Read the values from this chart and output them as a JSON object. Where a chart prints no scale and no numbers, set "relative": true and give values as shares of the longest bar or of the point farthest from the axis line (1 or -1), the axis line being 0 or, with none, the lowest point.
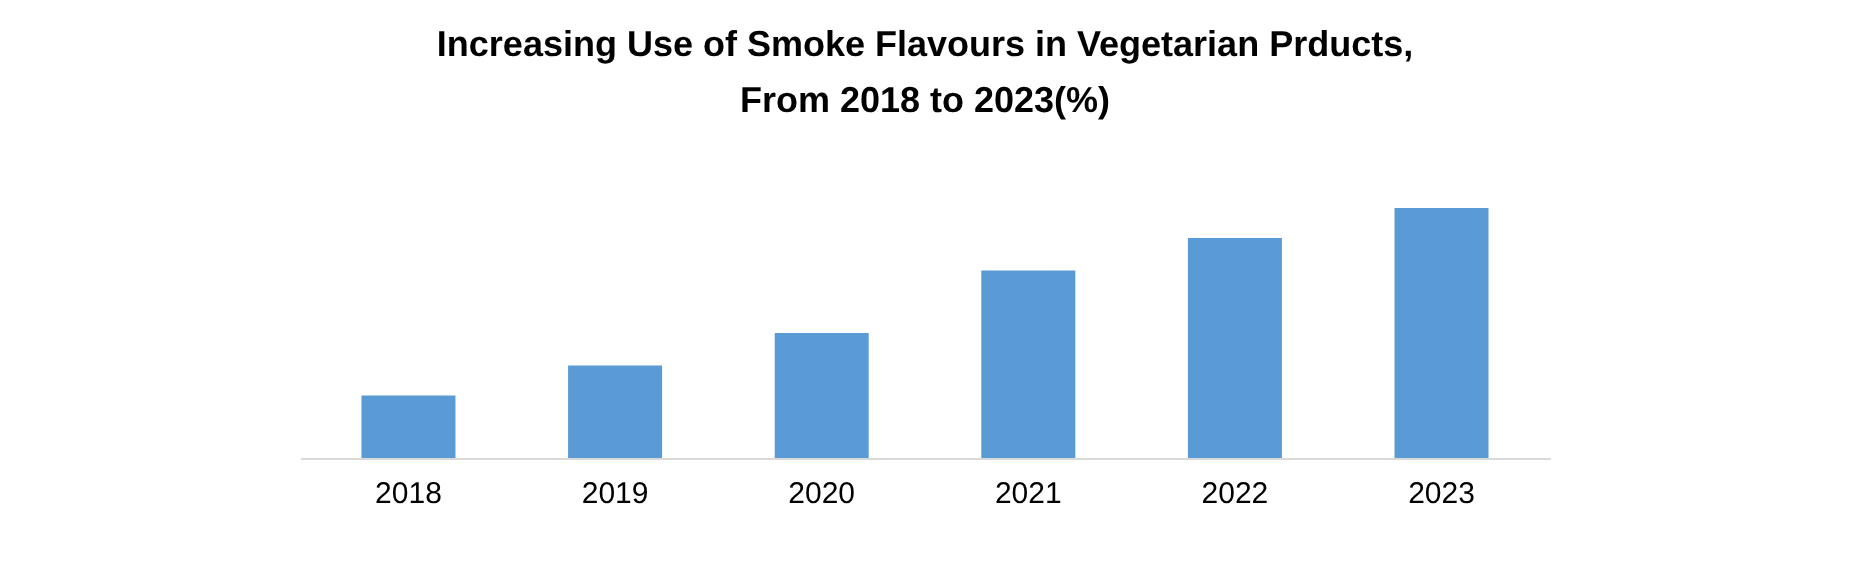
{
  "chart_data": {
    "type": "bar",
    "title": "Increasing Use of Smoke Flavours in Vegetarian Prducts,\nFrom 2018 to 2023(%)",
    "relative": true,
    "categories": [
      "2018",
      "2019",
      "2020",
      "2021",
      "2022",
      "2023"
    ],
    "values": [
      0.25,
      0.37,
      0.5,
      0.75,
      0.88,
      1
    ],
    "color": "#5b9bd5",
    "grid": false
  }
}
